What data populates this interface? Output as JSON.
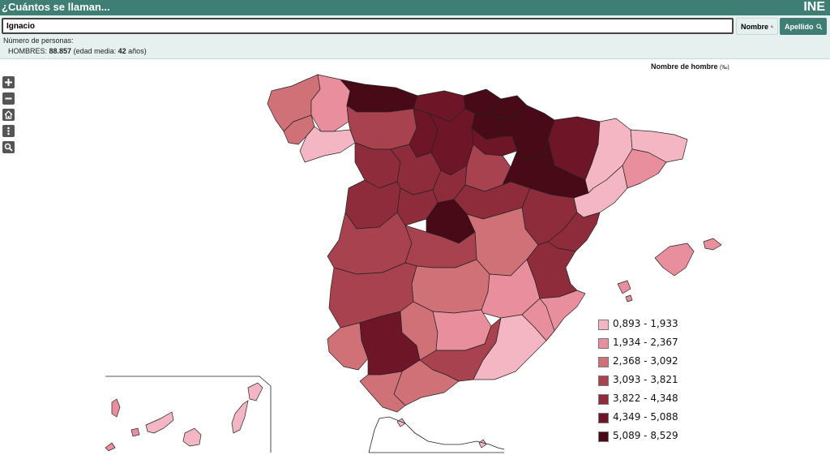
{
  "header": {
    "title": "¿Cuántos se llaman...",
    "logo": "INE"
  },
  "search": {
    "value": "Ignacio",
    "nombre_label": "Nombre",
    "apellido_label": "Apellido"
  },
  "summary": {
    "label": "Número de personas:",
    "group": "HOMBRES:",
    "count": "88.857",
    "age_prefix": "(edad media:",
    "age_value": "42",
    "age_suffix": "años)"
  },
  "map": {
    "title": "Nombre de hombre",
    "unit": "(‰)",
    "controls": [
      "zoom-in",
      "zoom-out",
      "home",
      "more",
      "search"
    ],
    "legend": [
      {
        "range": "0,893 - 1,933",
        "color": "#f3b6c2"
      },
      {
        "range": "1,934 - 2,367",
        "color": "#e98e9d"
      },
      {
        "range": "2,368 - 3,092",
        "color": "#cf7176"
      },
      {
        "range": "3,093 - 3,821",
        "color": "#a9424f"
      },
      {
        "range": "3,822 - 4,348",
        "color": "#8e2c3c"
      },
      {
        "range": "4,349 - 5,088",
        "color": "#6e1627"
      },
      {
        "range": "5,089 - 8,529",
        "color": "#480a16"
      }
    ]
  },
  "colors": {
    "header_bg": "#3f7e74",
    "search_bg": "#e6f0ee",
    "border": "#222222"
  }
}
